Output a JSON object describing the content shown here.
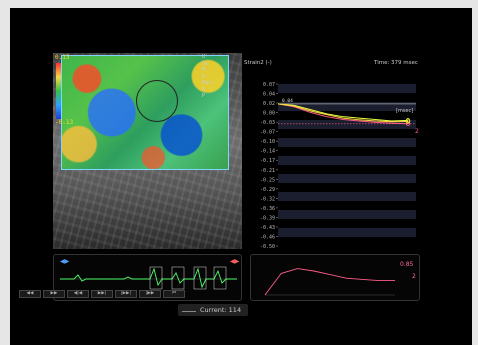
{
  "ultrasound": {
    "scale_top": "0.13",
    "scale_bottom": "-0.13",
    "segment_labels": [
      "U",
      "SG",
      "M",
      "D",
      "Bqrs",
      "A",
      "P"
    ]
  },
  "graph": {
    "title": "Strain2 (-)",
    "time": "Time: 379 msec",
    "unit_label": "[msec]",
    "end_label": "2",
    "annotation": "0.04"
  },
  "chart_data": {
    "type": "line",
    "ylabel": "Strain2 (-)",
    "xlabel": "",
    "ylim": [
      -0.5,
      0.07
    ],
    "y_ticks": [
      "0.07",
      "0.04",
      "0.02",
      "0.00",
      "-0.03",
      "-0.07",
      "-0.10",
      "-0.14",
      "-0.17",
      "-0.21",
      "-0.25",
      "-0.29",
      "-0.32",
      "-0.36",
      "-0.39",
      "-0.43",
      "-0.46",
      "-0.50"
    ],
    "series": [
      {
        "color": "#ff5c8a",
        "values": [
          0.0,
          -0.01,
          -0.03,
          -0.045,
          -0.055,
          -0.06,
          -0.065,
          -0.068,
          -0.07
        ]
      },
      {
        "color": "#e6ff3c",
        "values": [
          0.0,
          -0.005,
          -0.02,
          -0.035,
          -0.045,
          -0.05,
          -0.055,
          -0.06,
          -0.058
        ]
      },
      {
        "color": "#ffd640",
        "values": [
          0.0,
          -0.008,
          -0.025,
          -0.038,
          -0.05,
          -0.056,
          -0.06,
          -0.063,
          -0.062
        ]
      }
    ]
  },
  "timeline": {
    "controls": [
      "◀◀",
      "▶▶",
      "◀|◀",
      "▶▶|",
      "|▶▶|",
      "|▶▶",
      "⏮"
    ],
    "current_label": "Current: 114"
  },
  "mini_chart": {
    "max_value": "0.85",
    "tag": "2",
    "values": [
      0.0,
      0.18,
      0.22,
      0.2,
      0.17,
      0.14,
      0.13,
      0.12,
      0.12
    ],
    "color": "#ff5c8a"
  }
}
